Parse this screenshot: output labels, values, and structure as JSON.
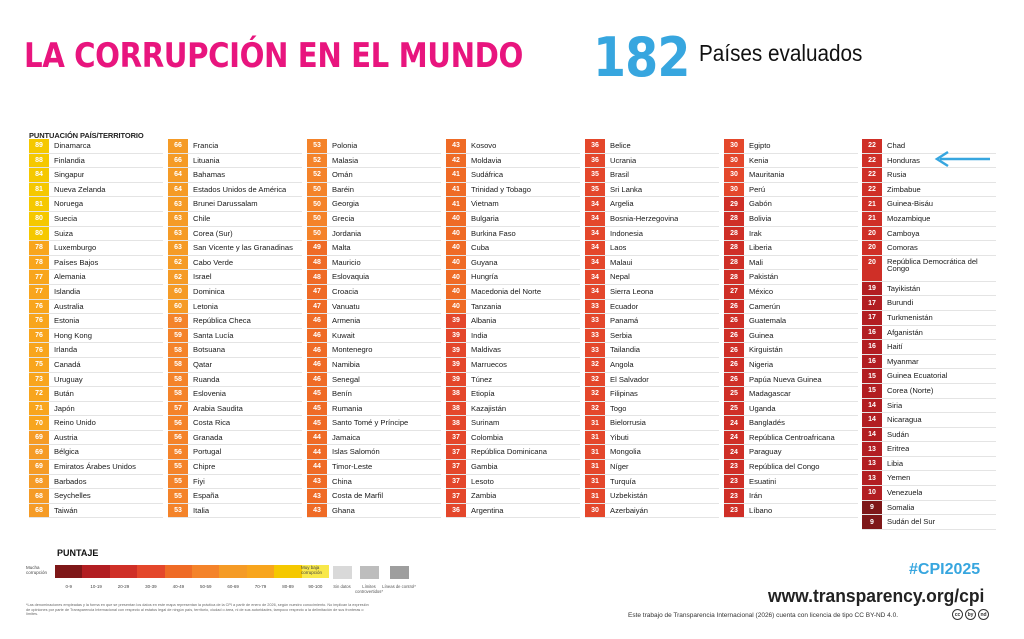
{
  "header": {
    "title": "LA CORRUPCIÓN EN EL MUNDO",
    "count": "182",
    "count_label": "Países evaluados"
  },
  "table_header": "PUNTUACIÓN PAÍS/TERRITORIO",
  "colors": {
    "s80": "#f5c800",
    "s70": "#f8a51d",
    "s60": "#f59b26",
    "s50": "#f4832a",
    "s40": "#ef6b26",
    "s30": "#e4472b",
    "s20": "#cf2f27",
    "s10": "#b21e22",
    "s0": "#7e1718",
    "title_pink": "#e8157e",
    "accent_blue": "#37a6df"
  },
  "countries": [
    [
      "89",
      "Dinamarca"
    ],
    [
      "88",
      "Finlandia"
    ],
    [
      "84",
      "Singapur"
    ],
    [
      "81",
      "Nueva Zelanda"
    ],
    [
      "81",
      "Noruega"
    ],
    [
      "80",
      "Suecia"
    ],
    [
      "80",
      "Suiza"
    ],
    [
      "78",
      "Luxemburgo"
    ],
    [
      "78",
      "Países Bajos"
    ],
    [
      "77",
      "Alemania"
    ],
    [
      "77",
      "Islandia"
    ],
    [
      "76",
      "Australia"
    ],
    [
      "76",
      "Estonia"
    ],
    [
      "76",
      "Hong Kong"
    ],
    [
      "76",
      "Irlanda"
    ],
    [
      "75",
      "Canadá"
    ],
    [
      "73",
      "Uruguay"
    ],
    [
      "72",
      "Bután"
    ],
    [
      "71",
      "Japón"
    ],
    [
      "70",
      "Reino Unido"
    ],
    [
      "69",
      "Austria"
    ],
    [
      "69",
      "Bélgica"
    ],
    [
      "69",
      "Emiratos Árabes Unidos"
    ],
    [
      "68",
      "Barbados"
    ],
    [
      "68",
      "Seychelles"
    ],
    [
      "68",
      "Taiwán"
    ],
    [
      "66",
      "Francia"
    ],
    [
      "66",
      "Lituania"
    ],
    [
      "64",
      "Bahamas"
    ],
    [
      "64",
      "Estados Unidos de América"
    ],
    [
      "63",
      "Brunei Darussalam"
    ],
    [
      "63",
      "Chile"
    ],
    [
      "63",
      "Corea (Sur)"
    ],
    [
      "63",
      "San Vicente y las Granadinas"
    ],
    [
      "62",
      "Cabo Verde"
    ],
    [
      "62",
      "Israel"
    ],
    [
      "60",
      "Dominica"
    ],
    [
      "60",
      "Letonia"
    ],
    [
      "59",
      "República Checa"
    ],
    [
      "59",
      "Santa Lucía"
    ],
    [
      "58",
      "Botsuana"
    ],
    [
      "58",
      "Qatar"
    ],
    [
      "58",
      "Ruanda"
    ],
    [
      "58",
      "Eslovenia"
    ],
    [
      "57",
      "Arabia Saudita"
    ],
    [
      "56",
      "Costa Rica"
    ],
    [
      "56",
      "Granada"
    ],
    [
      "56",
      "Portugal"
    ],
    [
      "55",
      "Chipre"
    ],
    [
      "55",
      "Fiyi"
    ],
    [
      "55",
      "España"
    ],
    [
      "53",
      "Italia"
    ],
    [
      "53",
      "Polonia"
    ],
    [
      "52",
      "Malasia"
    ],
    [
      "52",
      "Omán"
    ],
    [
      "50",
      "Baréin"
    ],
    [
      "50",
      "Georgia"
    ],
    [
      "50",
      "Grecia"
    ],
    [
      "50",
      "Jordania"
    ],
    [
      "49",
      "Malta"
    ],
    [
      "48",
      "Mauricio"
    ],
    [
      "48",
      "Eslovaquia"
    ],
    [
      "47",
      "Croacia"
    ],
    [
      "47",
      "Vanuatu"
    ],
    [
      "46",
      "Armenia"
    ],
    [
      "46",
      "Kuwait"
    ],
    [
      "46",
      "Montenegro"
    ],
    [
      "46",
      "Namibia"
    ],
    [
      "46",
      "Senegal"
    ],
    [
      "45",
      "Benín"
    ],
    [
      "45",
      "Rumania"
    ],
    [
      "45",
      "Santo Tomé y Príncipe"
    ],
    [
      "44",
      "Jamaica"
    ],
    [
      "44",
      "Islas Salomón"
    ],
    [
      "44",
      "Timor-Leste"
    ],
    [
      "43",
      "China"
    ],
    [
      "43",
      "Costa de Marfil"
    ],
    [
      "43",
      "Ghana"
    ],
    [
      "43",
      "Kosovo"
    ],
    [
      "42",
      "Moldavia"
    ],
    [
      "41",
      "Sudáfrica"
    ],
    [
      "41",
      "Trinidad y Tobago"
    ],
    [
      "41",
      "Vietnam"
    ],
    [
      "40",
      "Bulgaria"
    ],
    [
      "40",
      "Burkina Faso"
    ],
    [
      "40",
      "Cuba"
    ],
    [
      "40",
      "Guyana"
    ],
    [
      "40",
      "Hungría"
    ],
    [
      "40",
      "Macedonia del Norte"
    ],
    [
      "40",
      "Tanzania"
    ],
    [
      "39",
      "Albania"
    ],
    [
      "39",
      "India"
    ],
    [
      "39",
      "Maldivas"
    ],
    [
      "39",
      "Marruecos"
    ],
    [
      "39",
      "Túnez"
    ],
    [
      "38",
      "Etiopía"
    ],
    [
      "38",
      "Kazajistán"
    ],
    [
      "38",
      "Surinam"
    ],
    [
      "37",
      "Colombia"
    ],
    [
      "37",
      "República Dominicana"
    ],
    [
      "37",
      "Gambia"
    ],
    [
      "37",
      "Lesoto"
    ],
    [
      "37",
      "Zambia"
    ],
    [
      "36",
      "Argentina"
    ],
    [
      "36",
      "Belice"
    ],
    [
      "36",
      "Ucrania"
    ],
    [
      "35",
      "Brasil"
    ],
    [
      "35",
      "Sri Lanka"
    ],
    [
      "34",
      "Argelia"
    ],
    [
      "34",
      "Bosnia-Herzegovina"
    ],
    [
      "34",
      "Indonesia"
    ],
    [
      "34",
      "Laos"
    ],
    [
      "34",
      "Malaui"
    ],
    [
      "34",
      "Nepal"
    ],
    [
      "34",
      "Sierra Leona"
    ],
    [
      "33",
      "Ecuador"
    ],
    [
      "33",
      "Panamá"
    ],
    [
      "33",
      "Serbia"
    ],
    [
      "33",
      "Tailandia"
    ],
    [
      "32",
      "Angola"
    ],
    [
      "32",
      "El Salvador"
    ],
    [
      "32",
      "Filipinas"
    ],
    [
      "32",
      "Togo"
    ],
    [
      "31",
      "Bielorrusia"
    ],
    [
      "31",
      "Yibuti"
    ],
    [
      "31",
      "Mongolia"
    ],
    [
      "31",
      "Níger"
    ],
    [
      "31",
      "Turquía"
    ],
    [
      "31",
      "Uzbekistán"
    ],
    [
      "30",
      "Azerbaiyán"
    ],
    [
      "30",
      "Egipto"
    ],
    [
      "30",
      "Kenia"
    ],
    [
      "30",
      "Mauritania"
    ],
    [
      "30",
      "Perú"
    ],
    [
      "29",
      "Gabón"
    ],
    [
      "28",
      "Bolivia"
    ],
    [
      "28",
      "Irak"
    ],
    [
      "28",
      "Liberia"
    ],
    [
      "28",
      "Mali"
    ],
    [
      "28",
      "Pakistán"
    ],
    [
      "27",
      "México"
    ],
    [
      "26",
      "Camerún"
    ],
    [
      "26",
      "Guatemala"
    ],
    [
      "26",
      "Guinea"
    ],
    [
      "26",
      "Kirguistán"
    ],
    [
      "26",
      "Nigeria"
    ],
    [
      "26",
      "Papúa Nueva Guinea"
    ],
    [
      "25",
      "Madagascar"
    ],
    [
      "25",
      "Uganda"
    ],
    [
      "24",
      "Bangladés"
    ],
    [
      "24",
      "República Centroafricana"
    ],
    [
      "24",
      "Paraguay"
    ],
    [
      "23",
      "República del Congo"
    ],
    [
      "23",
      "Esuatini"
    ],
    [
      "23",
      "Irán"
    ],
    [
      "23",
      "Líbano"
    ],
    [
      "22",
      "Chad"
    ],
    [
      "22",
      "Honduras"
    ],
    [
      "22",
      "Rusia"
    ],
    [
      "22",
      "Zimbabue"
    ],
    [
      "21",
      "Guinea-Bisáu"
    ],
    [
      "21",
      "Mozambique"
    ],
    [
      "20",
      "Camboya"
    ],
    [
      "20",
      "Comoras"
    ],
    [
      "20",
      "República Democrática del Congo"
    ],
    [
      "19",
      "Tayikistán"
    ],
    [
      "17",
      "Burundi"
    ],
    [
      "17",
      "Turkmenistán"
    ],
    [
      "16",
      "Afganistán"
    ],
    [
      "16",
      "Haití"
    ],
    [
      "16",
      "Myanmar"
    ],
    [
      "15",
      "Guinea Ecuatorial"
    ],
    [
      "15",
      "Corea (Norte)"
    ],
    [
      "14",
      "Siria"
    ],
    [
      "14",
      "Nicaragua"
    ],
    [
      "14",
      "Sudán"
    ],
    [
      "13",
      "Eritrea"
    ],
    [
      "13",
      "Libia"
    ],
    [
      "13",
      "Yemen"
    ],
    [
      "10",
      "Venezuela"
    ],
    [
      "9",
      "Somalia"
    ],
    [
      "9",
      "Sudán del Sur"
    ]
  ],
  "scale": {
    "title": "PUNTAJE",
    "left_label": "Mucha corrupción",
    "right_label": "Muy baja corrupción",
    "ticks": [
      "0-9",
      "10-19",
      "20-29",
      "30-39",
      "40-49",
      "50-59",
      "60-69",
      "70-79",
      "80-89",
      "90-100"
    ],
    "extra": [
      "Sin datos",
      "Límites controvertidos*",
      "Líneas de control*"
    ]
  },
  "footnote": "*Las denominaciones empleadas y la forma en que se presentan los datos en este mapa representan la práctica de la CPI a partir de enero de 2026, según nuestro conocimiento. No implican la expresión de opiniones por parte de Transparencia Internacional con respecto al estatus legal de ningún país, territorio, ciudad o área, ni de sus autoridades, tampoco respecto a la delimitación de sus fronteras o límites.",
  "footer": {
    "hashtag": "#CPI2025",
    "url": "www.transparency.org/cpi",
    "license": "Este trabajo de Transparencia Internacional (2026) cuenta con licencia de tipo CC BY-ND 4.0.",
    "cc_icons": [
      "cc",
      "by",
      "nd"
    ]
  }
}
